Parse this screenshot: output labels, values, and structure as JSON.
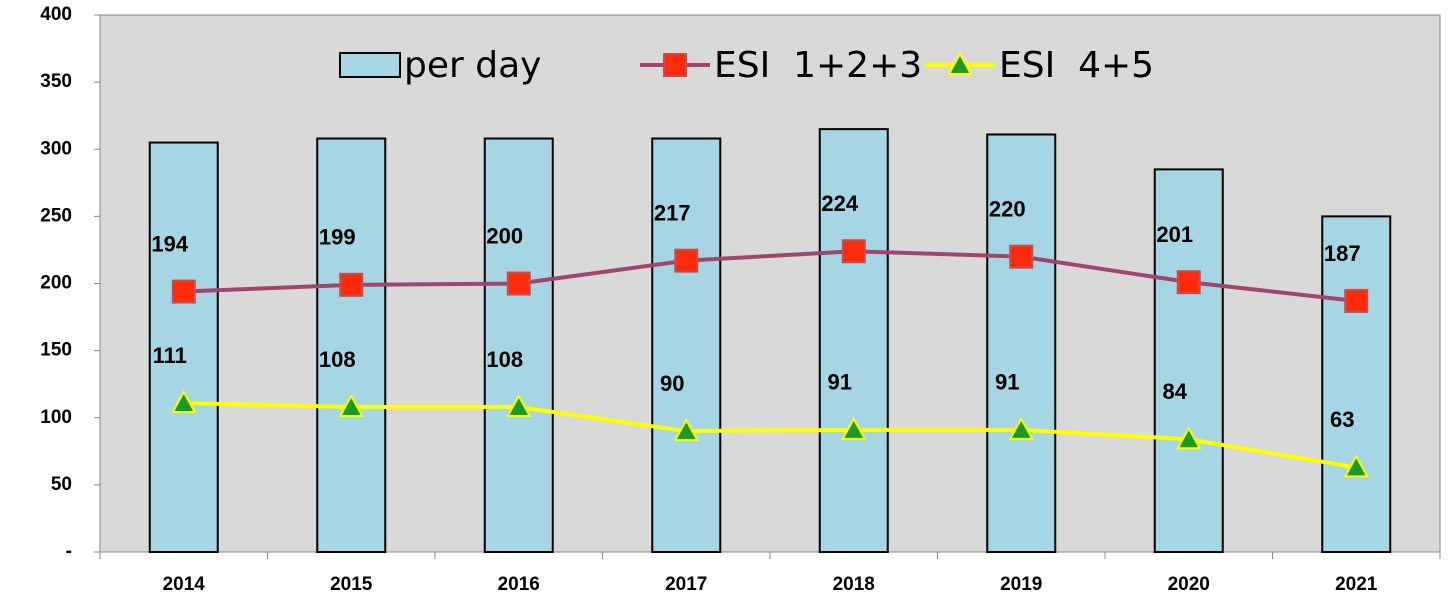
{
  "chart_data": {
    "type": "bar_line",
    "categories": [
      "2014",
      "2015",
      "2016",
      "2017",
      "2018",
      "2019",
      "2020",
      "2021"
    ],
    "series": [
      {
        "name": "per day",
        "type": "bar",
        "color": "#a6d5e3",
        "values": [
          305,
          308,
          308,
          308,
          315,
          311,
          285,
          250
        ]
      },
      {
        "name": "ESI  1+2+3",
        "type": "line",
        "color": "#a0466e",
        "marker_color": "#ff2a0a",
        "values": [
          194,
          199,
          200,
          217,
          224,
          220,
          201,
          187
        ]
      },
      {
        "name": "ESI  4+5",
        "type": "line",
        "color": "#ffff00",
        "marker_color": "#1a9a2a",
        "values": [
          111,
          108,
          108,
          90,
          91,
          91,
          84,
          63
        ]
      }
    ],
    "ylim": [
      0,
      400
    ],
    "yticks": [
      {
        "value": 0,
        "label": "-"
      },
      50,
      100,
      150,
      200,
      250,
      300,
      350,
      400
    ],
    "plot_background": "#d9d9d9"
  }
}
